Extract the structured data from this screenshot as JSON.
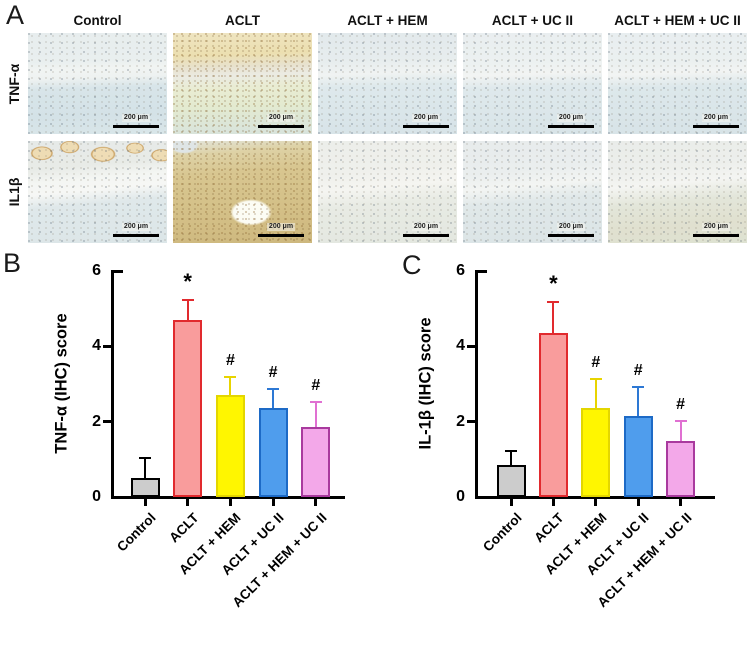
{
  "figure": {
    "panel_a": {
      "label": "A",
      "column_headers": [
        "Control",
        "ACLT",
        "ACLT + HEM",
        "ACLT + UC II",
        "ACLT + HEM + UC II"
      ],
      "row_labels": [
        "TNF-α",
        "IL1β"
      ],
      "scale_bar_label": "200 μm",
      "tiles": [
        {
          "row": "TNF-α",
          "col": "Control",
          "variant": "tnf-control",
          "stain": "weak"
        },
        {
          "row": "TNF-α",
          "col": "ACLT",
          "variant": "tnf-aclt",
          "stain": "strong"
        },
        {
          "row": "TNF-α",
          "col": "ACLT + HEM",
          "variant": "tnf-hem",
          "stain": "weak"
        },
        {
          "row": "TNF-α",
          "col": "ACLT + UC II",
          "variant": "tnf-ucii",
          "stain": "weak"
        },
        {
          "row": "TNF-α",
          "col": "ACLT + HEM + UC II",
          "variant": "tnf-hem-ucii",
          "stain": "weak"
        },
        {
          "row": "IL1β",
          "col": "Control",
          "variant": "il1b-control",
          "stain": "weak"
        },
        {
          "row": "IL1β",
          "col": "ACLT",
          "variant": "il1b-aclt",
          "stain": "strong"
        },
        {
          "row": "IL1β",
          "col": "ACLT + HEM",
          "variant": "il1b-hem",
          "stain": "weak"
        },
        {
          "row": "IL1β",
          "col": "ACLT + UC II",
          "variant": "il1b-ucii",
          "stain": "weak"
        },
        {
          "row": "IL1β",
          "col": "ACLT + HEM + UC II",
          "variant": "il1b-hem-ucii",
          "stain": "weak"
        }
      ]
    },
    "panel_b": {
      "label": "B"
    },
    "panel_c": {
      "label": "C"
    }
  },
  "chart_data": [
    {
      "type": "bar",
      "panel": "B",
      "title": "",
      "ylabel": "TNF-α (IHC) score",
      "xlabel": "",
      "ylim": [
        0,
        6
      ],
      "yticks": [
        0,
        2,
        4,
        6
      ],
      "grid": false,
      "legend": "none",
      "categories": [
        "Control",
        "ACLT",
        "ACLT + HEM",
        "ACLT + UC II",
        "ACLT + HEM + UC II"
      ],
      "values": [
        0.5,
        4.7,
        2.7,
        2.35,
        1.85
      ],
      "errors_upper": [
        0.55,
        0.55,
        0.5,
        0.55,
        0.7
      ],
      "significance": [
        "",
        "*",
        "#",
        "#",
        "#"
      ],
      "bar_colors": [
        {
          "fill": "#cccccc",
          "stroke": "#000000",
          "err": "#000000"
        },
        {
          "fill": "#f99c9c",
          "stroke": "#e12a2e",
          "err": "#e12a2e"
        },
        {
          "fill": "#fff600",
          "stroke": "#e3d600",
          "err": "#e8d400"
        },
        {
          "fill": "#4f9ded",
          "stroke": "#1d6ac6",
          "err": "#2d78d4"
        },
        {
          "fill": "#f3a8e9",
          "stroke": "#a93a9e",
          "err": "#e070d2"
        }
      ]
    },
    {
      "type": "bar",
      "panel": "C",
      "title": "",
      "ylabel": "IL-1β (IHC) score",
      "xlabel": "",
      "ylim": [
        0,
        6
      ],
      "yticks": [
        0,
        2,
        4,
        6
      ],
      "grid": false,
      "legend": "none",
      "categories": [
        "Control",
        "ACLT",
        "ACLT + HEM",
        "ACLT + UC II",
        "ACLT + HEM + UC II"
      ],
      "values": [
        0.85,
        4.35,
        2.35,
        2.15,
        1.5
      ],
      "errors_upper": [
        0.4,
        0.85,
        0.8,
        0.8,
        0.55
      ],
      "significance": [
        "",
        "*",
        "#",
        "#",
        "#"
      ],
      "bar_colors": [
        {
          "fill": "#cccccc",
          "stroke": "#000000",
          "err": "#000000"
        },
        {
          "fill": "#f99c9c",
          "stroke": "#e12a2e",
          "err": "#e12a2e"
        },
        {
          "fill": "#fff600",
          "stroke": "#e3d600",
          "err": "#e8d400"
        },
        {
          "fill": "#4f9ded",
          "stroke": "#1d6ac6",
          "err": "#2d78d4"
        },
        {
          "fill": "#f3a8e9",
          "stroke": "#a93a9e",
          "err": "#e070d2"
        }
      ]
    }
  ]
}
